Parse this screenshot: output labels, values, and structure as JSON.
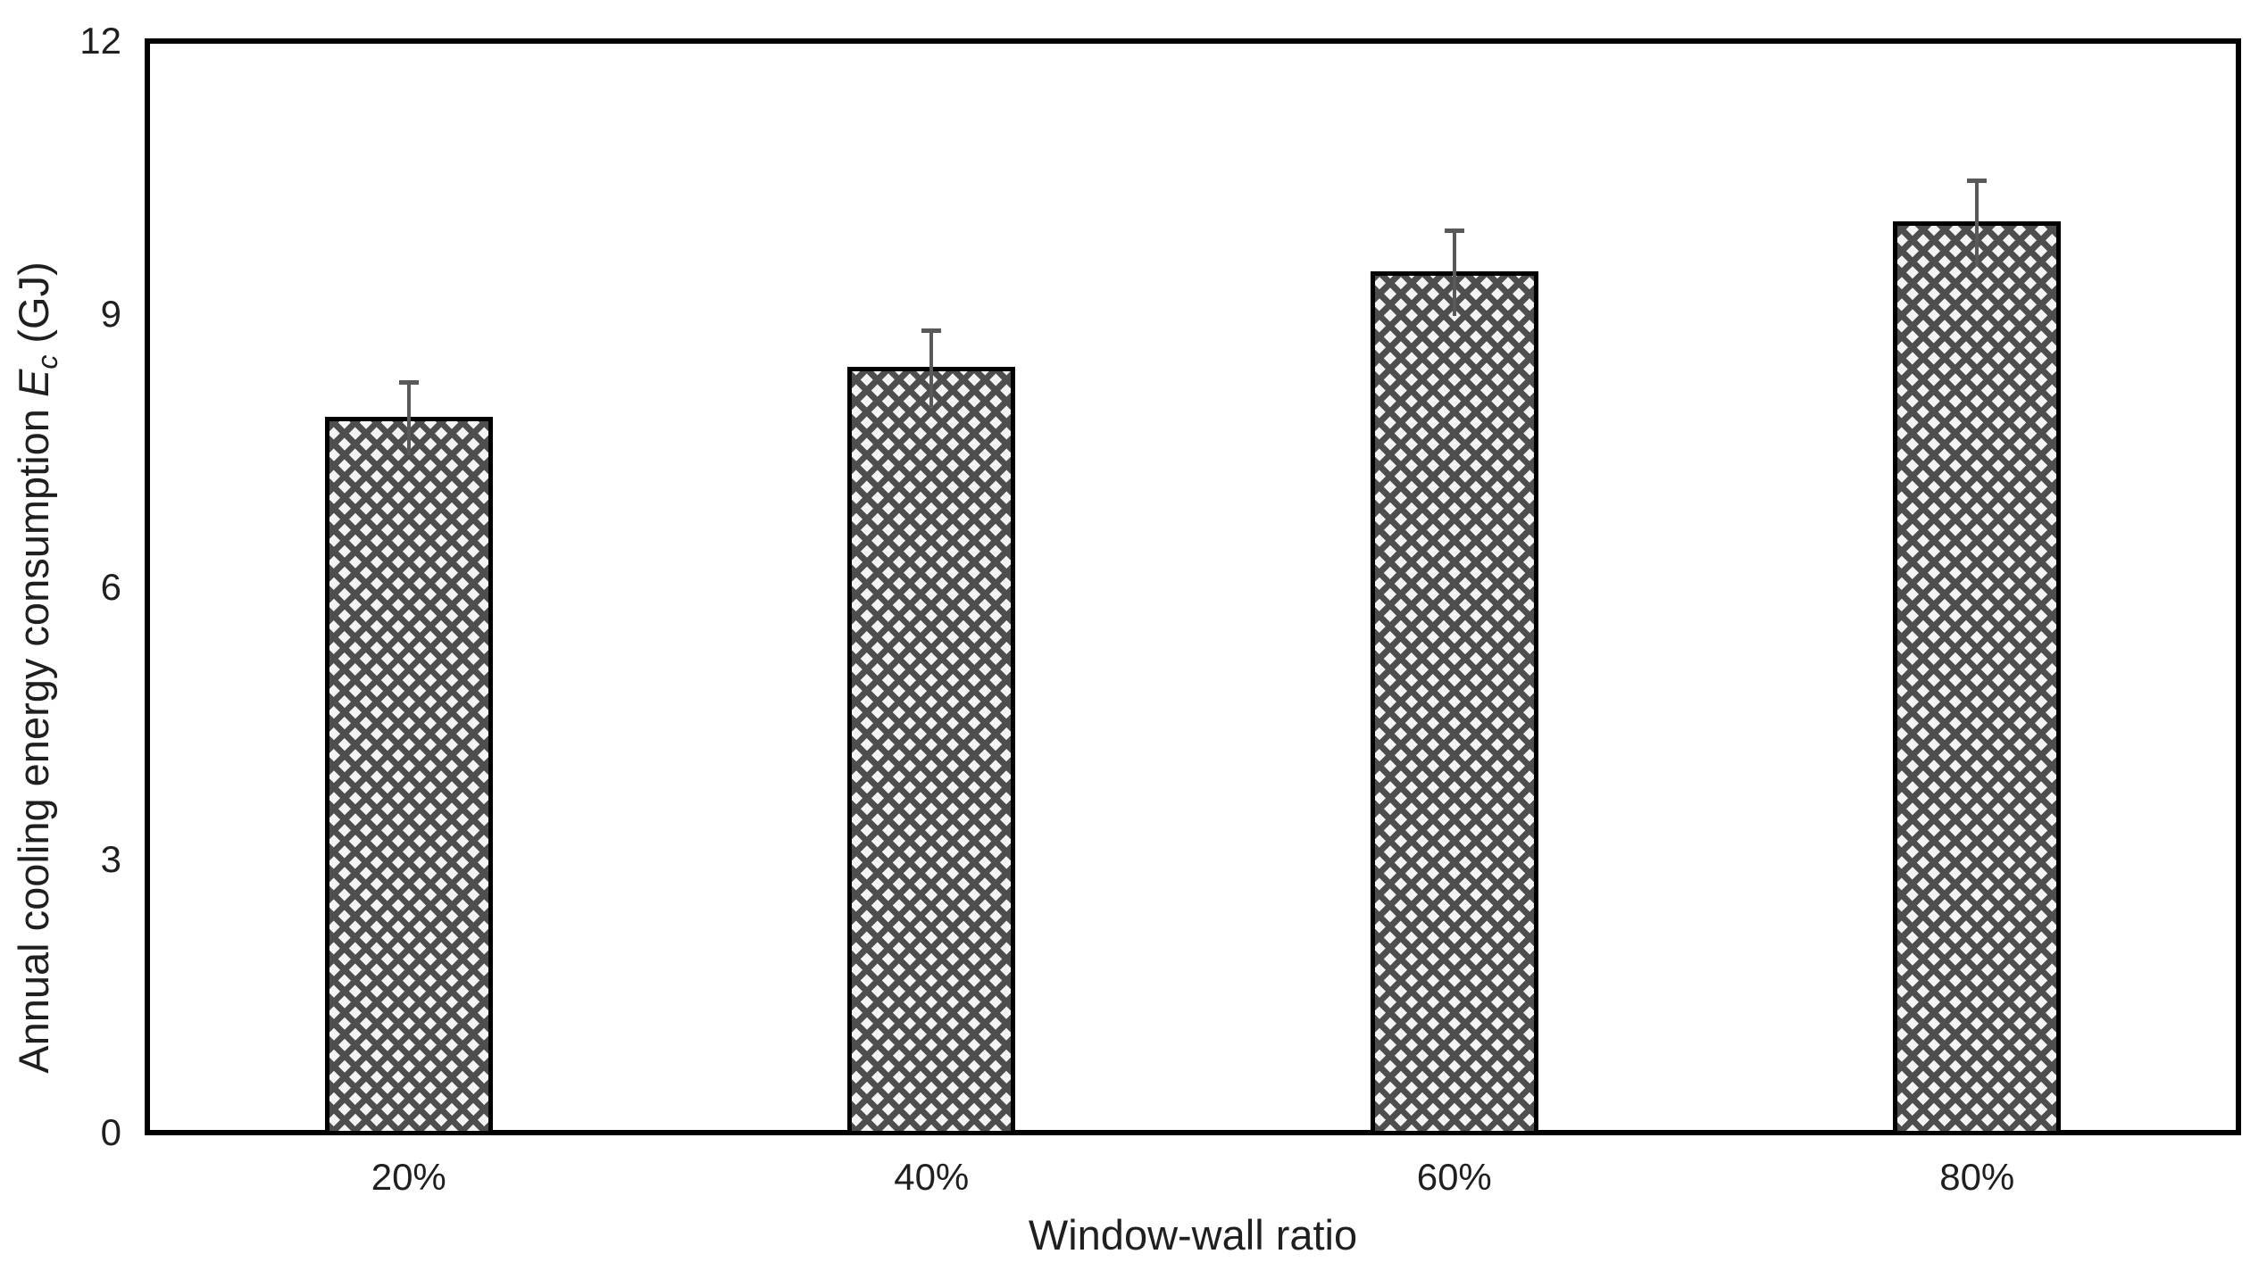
{
  "figure": {
    "background": "#ffffff"
  },
  "chart_data": {
    "type": "bar",
    "title": "",
    "categories": [
      "20%",
      "40%",
      "60%",
      "80%"
    ],
    "values": [
      7.85,
      8.4,
      9.45,
      10.0
    ],
    "error_plus": [
      0.4,
      0.42,
      0.47,
      0.47
    ],
    "error_minus": [
      0.4,
      0.42,
      0.47,
      0.47
    ],
    "xlabel": "Window-wall ratio",
    "ylabel": {
      "prefix": "Annual cooling energy consumption ",
      "var": "E",
      "sub": "c",
      "suffix": " (GJ)"
    },
    "ylim": [
      0,
      12
    ],
    "yticks": [
      0,
      3,
      6,
      9,
      12
    ],
    "grid": false,
    "legend": null,
    "styles": {
      "bar_outline": "#000000",
      "bar_pattern_line": "#4e4e4e",
      "bar_pattern_bg": "#f4f4f4",
      "error_bar_color": "#595959",
      "axis_color": "#000000",
      "text_color": "#1f1f1f"
    }
  }
}
